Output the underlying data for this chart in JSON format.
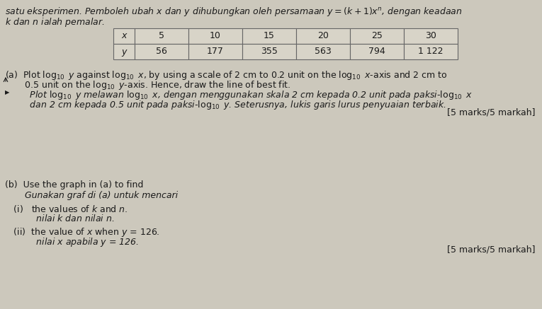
{
  "bg_color": "#ccc8bc",
  "text_color": "#1a1a1a",
  "table_bg": "#d8d4c8",
  "table_edge": "#666666",
  "table_headers": [
    "x",
    "5",
    "10",
    "15",
    "20",
    "25",
    "30"
  ],
  "table_row2": [
    "y",
    "56",
    "177",
    "355",
    "563",
    "794",
    "1 122"
  ],
  "marks_a": "[5 marks/5 markah]",
  "marks_b": "[5 marks/5 markah]"
}
